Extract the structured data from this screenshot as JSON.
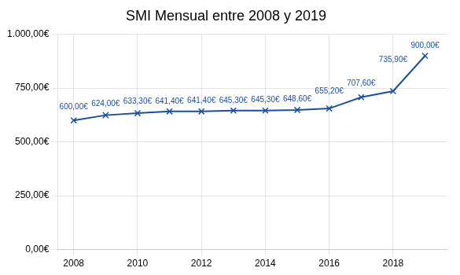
{
  "chart_data": {
    "type": "line",
    "title": "SMI Mensual entre 2008 y 2019",
    "x": [
      2008,
      2009,
      2010,
      2011,
      2012,
      2013,
      2014,
      2015,
      2016,
      2017,
      2018,
      2019
    ],
    "values": [
      600.0,
      624.0,
      633.3,
      641.4,
      641.4,
      645.3,
      645.3,
      648.6,
      655.2,
      707.6,
      735.9,
      900.0
    ],
    "value_labels": [
      "600,00€",
      "624,00€",
      "633,30€",
      "641,40€",
      "641,40€",
      "645,30€",
      "645,30€",
      "648,60€",
      "655,20€",
      "707,60€",
      "735,90€",
      "900,00€"
    ],
    "data_labels": true,
    "color": "#1b4f9c",
    "marker": "x",
    "xlim": [
      2007.5,
      2019.7
    ],
    "xticks": [
      2008,
      2010,
      2012,
      2014,
      2016,
      2018
    ],
    "ylim": [
      0,
      1000
    ],
    "yticks": [
      {
        "value": 0,
        "label": "0,00€"
      },
      {
        "value": 250,
        "label": "250,00€"
      },
      {
        "value": 500,
        "label": "500,00€"
      },
      {
        "value": 750,
        "label": "750,00€"
      },
      {
        "value": 1000,
        "label": "1.000,00€"
      }
    ],
    "grid": true
  }
}
